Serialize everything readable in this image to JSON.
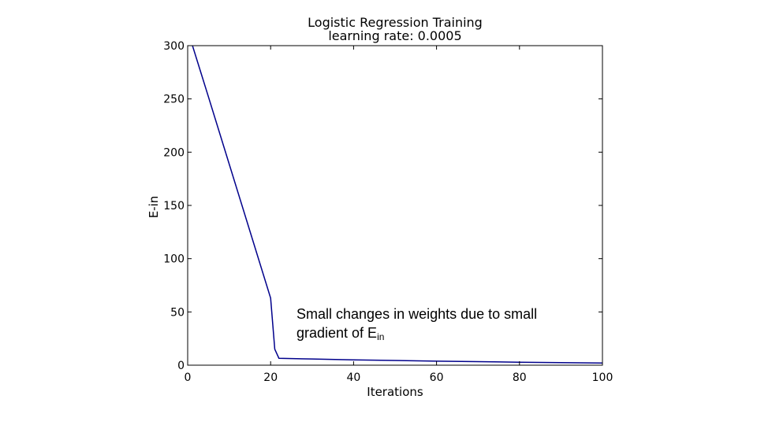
{
  "chart_data": {
    "type": "line",
    "title": "Logistic Regression Training",
    "subtitle": "learning rate: 0.0005",
    "xlabel": "Iterations",
    "ylabel": "E-in",
    "xlim": [
      0,
      100
    ],
    "ylim": [
      0,
      300
    ],
    "xticks": [
      0,
      20,
      40,
      60,
      80,
      100
    ],
    "yticks": [
      0,
      50,
      100,
      150,
      200,
      250,
      300
    ],
    "grid": false,
    "series": [
      {
        "color": "#00008b",
        "x": [
          0,
          1,
          5,
          10,
          15,
          20,
          21,
          22,
          30,
          40,
          50,
          60,
          70,
          80,
          90,
          100
        ],
        "y": [
          310,
          302,
          252,
          189,
          126,
          63,
          15,
          6.5,
          5.8,
          5.0,
          4.4,
          3.8,
          3.3,
          2.8,
          2.4,
          2.0
        ]
      }
    ]
  },
  "annotation": {
    "line1": "Small changes in weights due to small",
    "line2_text": "gradient of E",
    "line2_sub": "in"
  }
}
